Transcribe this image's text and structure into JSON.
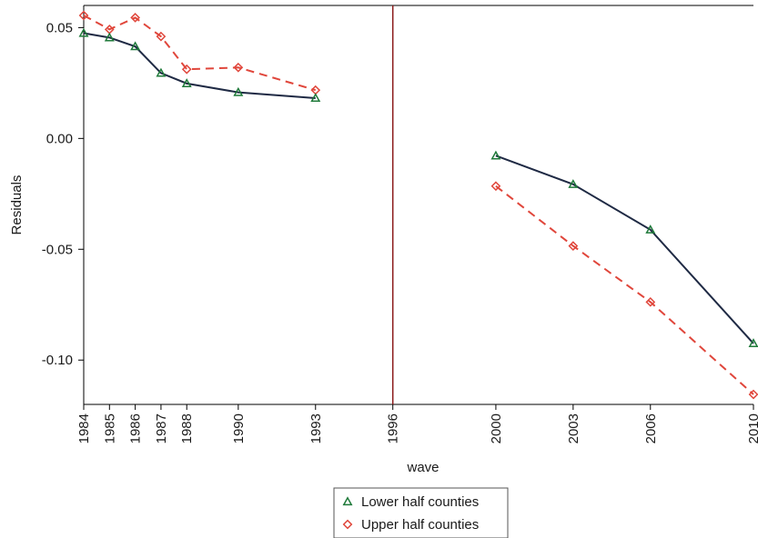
{
  "chart_data": {
    "type": "line",
    "xlabel": "wave",
    "ylabel": "Residuals",
    "x_ticks": [
      "1984",
      "1985",
      "1986",
      "1987",
      "1988",
      "1990",
      "1993",
      "1996",
      "2000",
      "2003",
      "2006",
      "2010"
    ],
    "y_ticks": [
      "0.05",
      "0.00",
      "-0.05",
      "-0.10"
    ],
    "y_tick_values": [
      0.05,
      0.0,
      -0.05,
      -0.1
    ],
    "xlim": [
      1984,
      2010
    ],
    "ylim": [
      -0.12,
      0.06
    ],
    "grid": false,
    "legend_position": "bottom-center",
    "vertical_reference_line": {
      "x": 1996,
      "color": "#8b1a1a"
    },
    "series": [
      {
        "name": "Lower half counties",
        "color": "#1f2a44",
        "marker_color": "#1f7a3a",
        "marker": "triangle",
        "line_style": "solid",
        "segments": [
          {
            "x": [
              1984,
              1985,
              1986,
              1987,
              1988,
              1990,
              1993
            ],
            "y": [
              0.0475,
              0.0455,
              0.0415,
              0.0295,
              0.0248,
              0.0208,
              0.0182
            ]
          },
          {
            "x": [
              2000,
              2003,
              2006,
              2010
            ],
            "y": [
              -0.0078,
              -0.0207,
              -0.0412,
              -0.0925
            ]
          }
        ]
      },
      {
        "name": "Upper half counties",
        "color": "#e0463b",
        "marker_color": "#e0463b",
        "marker": "diamond",
        "line_style": "dashed",
        "segments": [
          {
            "x": [
              1984,
              1985,
              1986,
              1987,
              1988,
              1990,
              1993
            ],
            "y": [
              0.0555,
              0.0492,
              0.0545,
              0.046,
              0.0312,
              0.032,
              0.0218
            ]
          },
          {
            "x": [
              2000,
              2003,
              2006,
              2010
            ],
            "y": [
              -0.0215,
              -0.0485,
              -0.0738,
              -0.1155
            ]
          }
        ]
      }
    ]
  }
}
